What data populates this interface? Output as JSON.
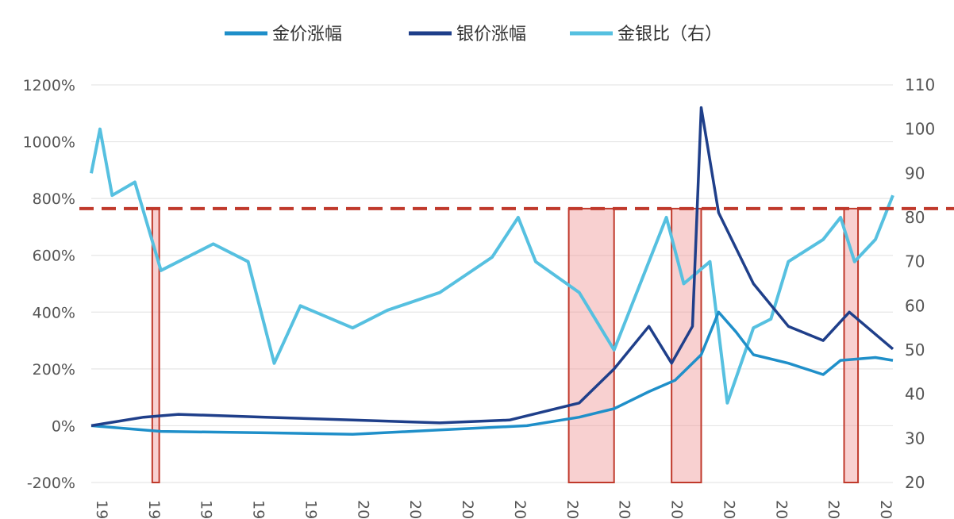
{
  "chart_data": {
    "type": "line",
    "legend": {
      "position": "top",
      "entries": [
        {
          "label": "金价涨幅",
          "color": "#1f8fc9"
        },
        {
          "label": "银价涨幅",
          "color": "#1f3f8a"
        },
        {
          "label": "金银比（右）",
          "color": "#56c0e0"
        }
      ]
    },
    "y_left": {
      "ticks": [
        "1200%",
        "1000%",
        "800%",
        "600%",
        "400%",
        "200%",
        "0%",
        "-200%"
      ],
      "ylim": [
        -200,
        1200
      ]
    },
    "y_right": {
      "ticks": [
        "110",
        "100",
        "90",
        "80",
        "70",
        "60",
        "50",
        "40",
        "30",
        "20"
      ],
      "ylim": [
        20,
        110
      ]
    },
    "x_ticks": [
      "19",
      "19",
      "19",
      "19",
      "19",
      "20",
      "20",
      "20",
      "20",
      "20",
      "20",
      "20",
      "20",
      "20",
      "20",
      "20"
    ],
    "grid": "horizontal",
    "reference_line": {
      "axis": "right",
      "value": 82,
      "color": "#c0392b",
      "style": "dashed"
    },
    "shaded_periods": [
      {
        "start": 0.35,
        "end": 0.39
      },
      {
        "start": 2.74,
        "end": 3.0
      },
      {
        "start": 3.33,
        "end": 3.5
      },
      {
        "start": 4.32,
        "end": 4.4
      }
    ],
    "series": [
      {
        "name": "金价涨幅",
        "axis": "left",
        "color": "#1f8fc9",
        "points": [
          [
            0,
            0
          ],
          [
            0.4,
            -20
          ],
          [
            1,
            -25
          ],
          [
            1.5,
            -30
          ],
          [
            2,
            -15
          ],
          [
            2.5,
            0
          ],
          [
            2.8,
            30
          ],
          [
            3.0,
            60
          ],
          [
            3.2,
            120
          ],
          [
            3.35,
            160
          ],
          [
            3.5,
            250
          ],
          [
            3.6,
            400
          ],
          [
            3.7,
            330
          ],
          [
            3.8,
            250
          ],
          [
            4.0,
            220
          ],
          [
            4.2,
            180
          ],
          [
            4.3,
            230
          ],
          [
            4.5,
            240
          ],
          [
            4.6,
            230
          ]
        ]
      },
      {
        "name": "银价涨幅",
        "axis": "left",
        "color": "#1f3f8a",
        "points": [
          [
            0,
            0
          ],
          [
            0.3,
            30
          ],
          [
            0.5,
            40
          ],
          [
            1,
            30
          ],
          [
            1.5,
            20
          ],
          [
            2,
            10
          ],
          [
            2.4,
            20
          ],
          [
            2.8,
            80
          ],
          [
            3.0,
            200
          ],
          [
            3.2,
            350
          ],
          [
            3.33,
            220
          ],
          [
            3.45,
            350
          ],
          [
            3.5,
            1120
          ],
          [
            3.6,
            750
          ],
          [
            3.8,
            500
          ],
          [
            4.0,
            350
          ],
          [
            4.2,
            300
          ],
          [
            4.35,
            400
          ],
          [
            4.6,
            270
          ]
        ]
      },
      {
        "name": "金银比（右）",
        "axis": "right",
        "color": "#56c0e0",
        "points": [
          [
            0,
            90
          ],
          [
            0.05,
            100
          ],
          [
            0.12,
            85
          ],
          [
            0.25,
            88
          ],
          [
            0.4,
            68
          ],
          [
            0.7,
            74
          ],
          [
            0.9,
            70
          ],
          [
            1.05,
            47
          ],
          [
            1.2,
            60
          ],
          [
            1.5,
            55
          ],
          [
            1.7,
            59
          ],
          [
            2.0,
            63
          ],
          [
            2.3,
            71
          ],
          [
            2.45,
            80
          ],
          [
            2.55,
            70
          ],
          [
            2.8,
            63
          ],
          [
            3.0,
            50
          ],
          [
            3.1,
            60
          ],
          [
            3.3,
            80
          ],
          [
            3.4,
            65
          ],
          [
            3.55,
            70
          ],
          [
            3.65,
            38
          ],
          [
            3.8,
            55
          ],
          [
            3.9,
            57
          ],
          [
            4.0,
            70
          ],
          [
            4.2,
            75
          ],
          [
            4.3,
            80
          ],
          [
            4.38,
            70
          ],
          [
            4.5,
            75
          ],
          [
            4.6,
            85
          ]
        ]
      }
    ]
  }
}
